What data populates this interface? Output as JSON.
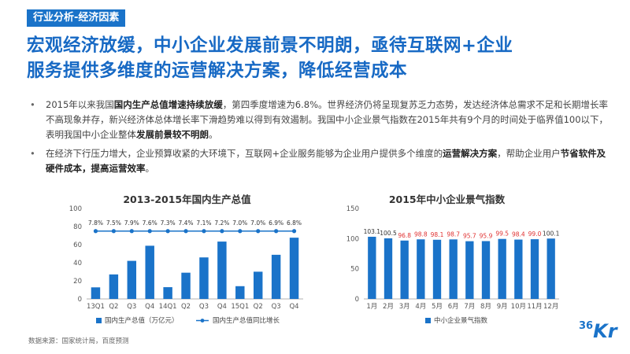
{
  "header": {
    "section_tag": "行业分析-经济因素",
    "headline_line1": "宏观经济放缓，中小企业发展前景不明朗，亟待互联网+企业",
    "headline_line2": "服务提供多维度的运营解决方案，降低经营成本"
  },
  "bullets": [
    {
      "dot": "•",
      "p1": "2015年以来我国",
      "b1": "国内生产总值增速持续放缓",
      "p2": "，第四季度增速为6.8%。世界经济仍将呈现复苏乏力态势，发达经济体总需求不足和长期增长率不高现象并存，新兴经济体总体增长率下滑趋势难以得到有效遏制。我国中小企业景气指数在2015年共有9个月的时间处于临界值100以下，表明我国中小企业整体",
      "b2": "发展前景较不明朗",
      "p3": "。"
    },
    {
      "dot": "•",
      "p1": "在经济下行压力增大，企业预算收紧的大环境下，互联网+企业服务能够为企业用户提供多个维度的",
      "b1": "运营解决方案",
      "p2": "，帮助企业用户",
      "b2": "节省软件及硬件成本，提高运营效率",
      "p3": "。"
    }
  ],
  "chart_data": [
    {
      "type": "bar",
      "title": "2013-2015年国内生产总值",
      "categories": [
        "13Q1",
        "Q2",
        "Q3",
        "Q4",
        "14Q1",
        "Q2",
        "Q3",
        "Q4",
        "15Q1",
        "Q2",
        "Q3",
        "Q4"
      ],
      "series": [
        {
          "name": "国内生产总值（万亿元）",
          "kind": "bar",
          "values": [
            12.8,
            27.1,
            42.1,
            58.8,
            13.0,
            29.0,
            45.9,
            63.4,
            14.1,
            30.1,
            48.8,
            67.7
          ]
        },
        {
          "name": "国内生产总值同比增长",
          "kind": "line",
          "values": [
            75,
            75,
            75,
            75,
            75,
            75,
            75,
            75,
            75,
            75,
            75,
            75
          ]
        }
      ],
      "line_labels": [
        "7.8%",
        "7.5%",
        "7.9%",
        "7.6%",
        "7.3%",
        "7.4%",
        "7.1%",
        "7.2%",
        "7.0%",
        "7.0%",
        "6.9%",
        "6.8%"
      ],
      "yticks": [
        "0",
        "20",
        "40",
        "60",
        "80",
        "100"
      ],
      "ylim": [
        0,
        100
      ],
      "colors": {
        "bar": "#1a73c9",
        "line": "#1a73c9"
      }
    },
    {
      "type": "bar",
      "title": "2015年中小企业景气指数",
      "categories": [
        "1月",
        "2月",
        "3月",
        "4月",
        "5月",
        "6月",
        "7月",
        "8月",
        "9月",
        "10月",
        "11月",
        "12月"
      ],
      "series": [
        {
          "name": "中小企业景气指数",
          "kind": "bar",
          "values": [
            103.1,
            100.5,
            96.8,
            98.8,
            98.1,
            98.7,
            95.7,
            95.9,
            99.5,
            98.4,
            99.0,
            100.1
          ]
        }
      ],
      "value_labels": [
        "103.1",
        "100.5",
        "96.8",
        "98.8",
        "98.1",
        "98.7",
        "95.7",
        "95.9",
        "99.5",
        "98.4",
        "99.0",
        "100.1"
      ],
      "yticks": [
        "0",
        "50",
        "100",
        "150"
      ],
      "ylim": [
        0,
        150
      ],
      "colors": {
        "bar": "#1a73c9",
        "label_high": "#333333",
        "label_low": "#e03030"
      }
    }
  ],
  "footer": {
    "source": "数据来源：国家统计局，百度预测",
    "logo_num": "36",
    "logo_kr": "Kr"
  }
}
